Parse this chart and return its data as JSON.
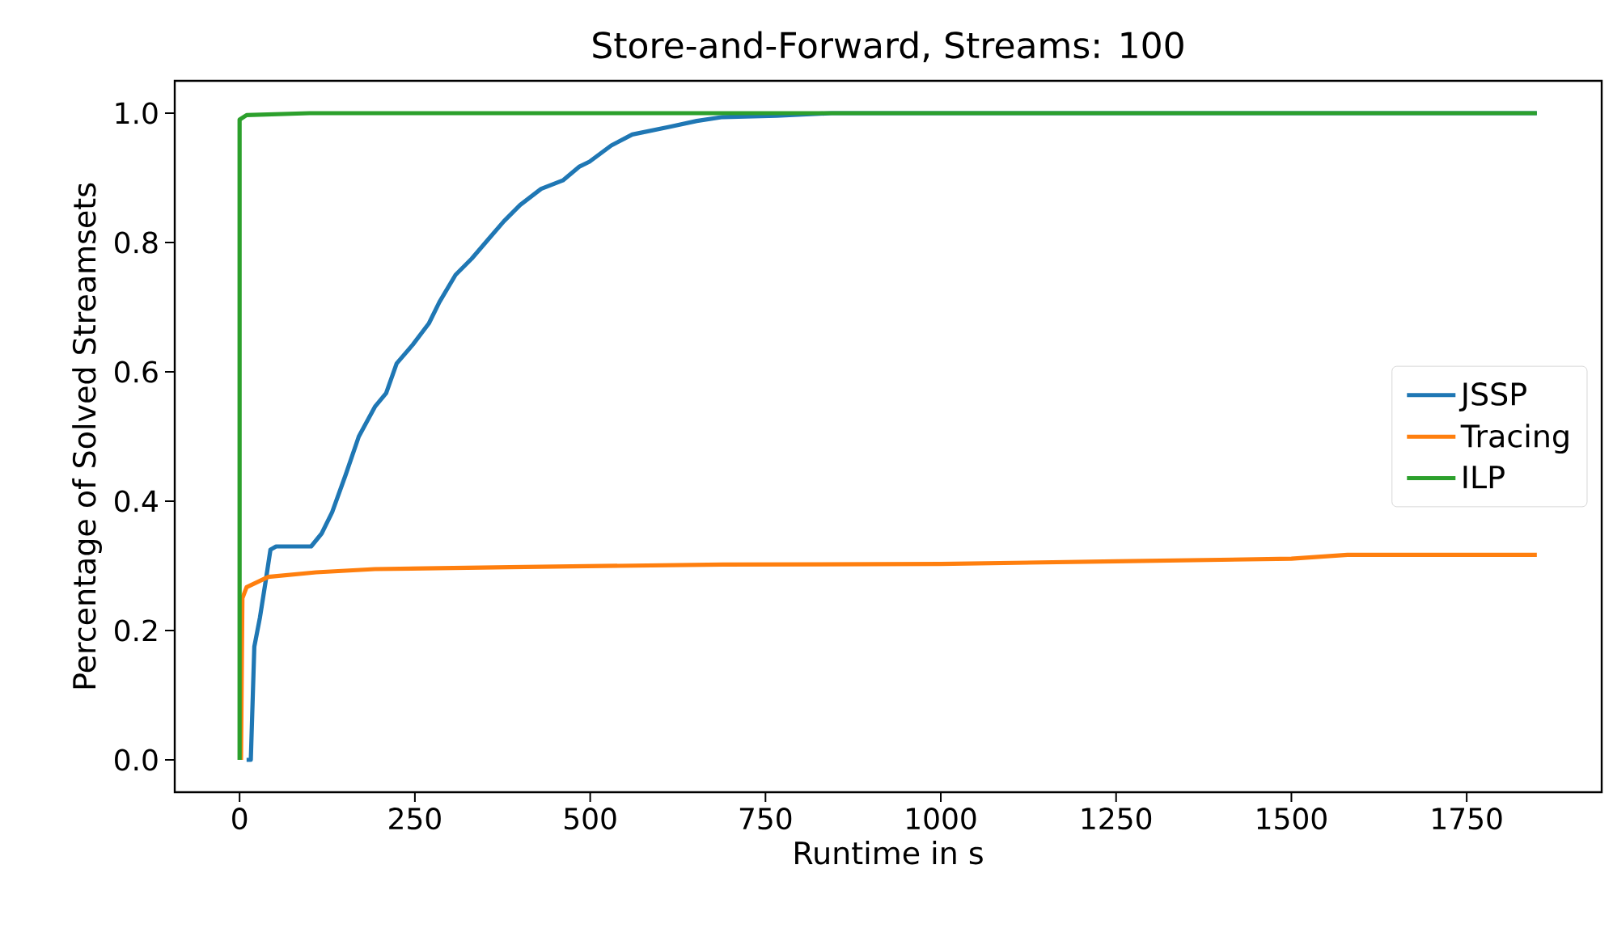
{
  "chart_data": {
    "type": "line",
    "title": "Store-and-Forward, Streams: 100",
    "xlabel": "Runtime in s",
    "ylabel": "Percentage of Solved Streamsets",
    "xlim": [
      -92.5,
      1942.5
    ],
    "ylim": [
      -0.05,
      1.05
    ],
    "xticks": [
      0,
      250,
      500,
      750,
      1000,
      1250,
      1500,
      1750
    ],
    "yticks": [
      {
        "value": 0,
        "label": "0.0"
      },
      {
        "value": 0.2,
        "label": "0.2"
      },
      {
        "value": 0.4,
        "label": "0.4"
      },
      {
        "value": 0.6,
        "label": "0.6"
      },
      {
        "value": 0.8,
        "label": "0.8"
      },
      {
        "value": 1,
        "label": "1.0"
      }
    ],
    "legend": "right",
    "grid": false,
    "marker": "none",
    "line_style": "solid",
    "series": [
      {
        "name": "JSSP",
        "color": "#1f77b4",
        "x": [
          10,
          16,
          21,
          29,
          37,
          44,
          52,
          102,
          117,
          132,
          151,
          170,
          193,
          209,
          224,
          247,
          270,
          285,
          308,
          331,
          354,
          377,
          400,
          430,
          461,
          484,
          499,
          530,
          560,
          614,
          652,
          689,
          766,
          844,
          1850
        ],
        "values": [
          0,
          0,
          0.175,
          0.22,
          0.275,
          0.325,
          0.33,
          0.33,
          0.35,
          0.383,
          0.44,
          0.5,
          0.546,
          0.567,
          0.613,
          0.642,
          0.675,
          0.708,
          0.75,
          0.775,
          0.804,
          0.833,
          0.858,
          0.883,
          0.896,
          0.917,
          0.925,
          0.95,
          0.967,
          0.979,
          0.988,
          0.994,
          0.996,
          1.0,
          1.0
        ]
      },
      {
        "name": "Tracing",
        "color": "#ff7f0e",
        "x": [
          2,
          4,
          10,
          41,
          109,
          193,
          385,
          689,
          1000,
          1250,
          1500,
          1580,
          1850
        ],
        "values": [
          0,
          0.25,
          0.267,
          0.283,
          0.29,
          0.295,
          0.298,
          0.302,
          0.303,
          0.307,
          0.311,
          0.317,
          0.317
        ]
      },
      {
        "name": "ILP",
        "color": "#2ca02c",
        "x": [
          0,
          0,
          10,
          100,
          1850
        ],
        "values": [
          0,
          0.99,
          0.997,
          1.0,
          1.0
        ]
      }
    ]
  }
}
